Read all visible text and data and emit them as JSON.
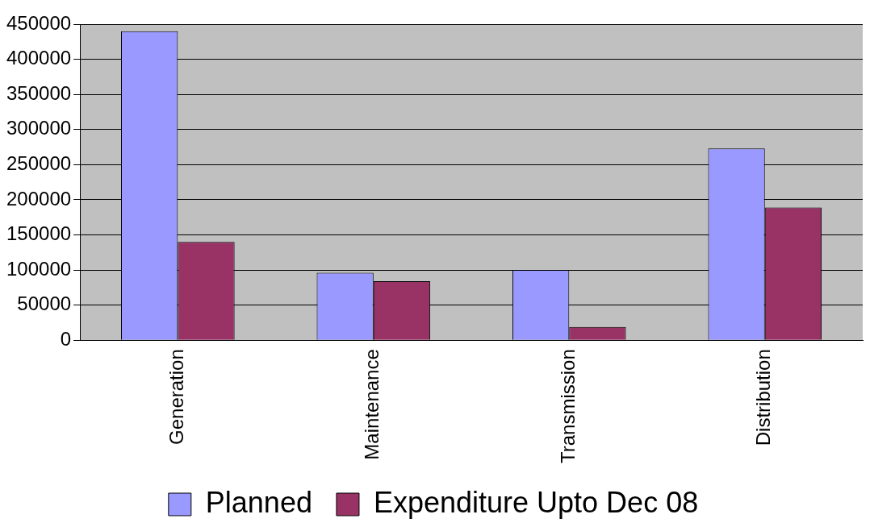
{
  "chart_data": {
    "type": "bar",
    "categories": [
      "Generation",
      "Maintenance",
      "Transmission",
      "Distribution"
    ],
    "series": [
      {
        "name": "Planned",
        "color": "#9999ff",
        "values": [
          440000,
          96000,
          100000,
          273000
        ]
      },
      {
        "name": "Expenditure Upto Dec 08",
        "color": "#993366",
        "values": [
          140000,
          84000,
          19000,
          189000
        ]
      }
    ],
    "ylim": [
      0,
      450000
    ],
    "yticks": [
      0,
      50000,
      100000,
      150000,
      200000,
      250000,
      300000,
      350000,
      400000,
      450000
    ],
    "grid": "y",
    "legend": "bottom"
  }
}
